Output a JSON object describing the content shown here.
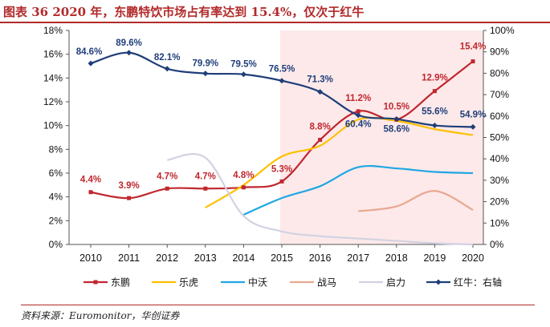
{
  "header": {
    "title": "图表 36   2020 年，东鹏特饮市场占有率达到 15.4%，仅次于红牛"
  },
  "footer": {
    "source": "资料来源：Euromonitor，华创证券"
  },
  "chart_data": {
    "type": "line",
    "x": [
      2010,
      2011,
      2012,
      2013,
      2014,
      2015,
      2016,
      2017,
      2018,
      2019,
      2020
    ],
    "left_axis": {
      "ticks": [
        "0%",
        "2%",
        "4%",
        "6%",
        "8%",
        "10%",
        "12%",
        "14%",
        "16%",
        "18%"
      ],
      "ylim": [
        0,
        18
      ]
    },
    "right_axis": {
      "ticks": [
        "0%",
        "10%",
        "20%",
        "30%",
        "40%",
        "50%",
        "60%",
        "70%",
        "80%",
        "90%",
        "100%"
      ],
      "ylim": [
        0,
        100
      ]
    },
    "shaded_region": {
      "from": 2015,
      "to": 2020,
      "color": "#fde9ea"
    },
    "series": [
      {
        "name": "东鹏",
        "axis": "left",
        "color": "#c0272d",
        "values": [
          4.4,
          3.9,
          4.7,
          4.7,
          4.8,
          5.3,
          8.8,
          11.2,
          10.5,
          12.9,
          15.4
        ],
        "labels": [
          "4.4%",
          "3.9%",
          "4.7%",
          "4.7%",
          "4.8%",
          "5.3%",
          "8.8%",
          "11.2%",
          "10.5%",
          "12.9%",
          "15.4%"
        ]
      },
      {
        "name": "乐虎",
        "axis": "left",
        "color": "#ffc000",
        "values": [
          null,
          null,
          null,
          3.1,
          5.0,
          7.4,
          8.3,
          10.5,
          10.4,
          9.7,
          9.2
        ]
      },
      {
        "name": "中沃",
        "axis": "left",
        "color": "#1fa7e3",
        "values": [
          null,
          null,
          null,
          null,
          2.5,
          3.9,
          4.9,
          6.5,
          6.4,
          6.1,
          6.0
        ]
      },
      {
        "name": "战马",
        "axis": "left",
        "color": "#e8a890",
        "values": [
          null,
          null,
          null,
          null,
          null,
          null,
          null,
          2.8,
          3.2,
          4.5,
          2.9
        ]
      },
      {
        "name": "启力",
        "axis": "left",
        "color": "#d2d2e2",
        "values": [
          null,
          null,
          7.1,
          7.3,
          2.4,
          1.1,
          0.7,
          0.5,
          0.3,
          0.1,
          0.0
        ]
      },
      {
        "name": "红牛：右轴",
        "axis": "right",
        "color": "#1f3e79",
        "values": [
          84.6,
          89.6,
          82.1,
          79.9,
          79.5,
          76.5,
          71.3,
          60.4,
          58.6,
          55.6,
          54.9
        ],
        "labels": [
          "84.6%",
          "89.6%",
          "82.1%",
          "79.9%",
          "79.5%",
          "76.5%",
          "71.3%",
          "60.4%",
          "58.6%",
          "55.6%",
          "54.9%"
        ]
      }
    ],
    "legend_position": "bottom"
  }
}
